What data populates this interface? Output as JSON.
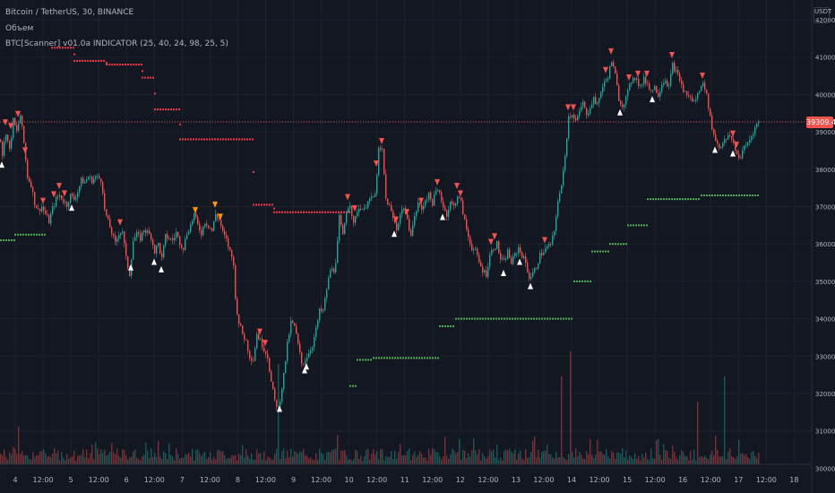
{
  "legend": {
    "symbol": "Bitcoin / TetherUS, 30, BINANCE",
    "volume": "Объем",
    "indicator": "BTC[Scanner] v01.0a INDICATOR (25, 40, 24, 98, 25, 5)"
  },
  "price_axis": {
    "unit": "USDT",
    "current_price": "39309.43"
  },
  "colors": {
    "background": "#131722",
    "grid": "#1e222d",
    "up": "#26a69a",
    "down": "#ef5350",
    "stop_red": "#f23645",
    "stop_green": "#4caf50",
    "sell_arrow": "#f05350",
    "buy_arrow": "#ffffff",
    "orange_arrow": "#ff9800",
    "axis_text": "#b2b5be"
  },
  "chart_data": {
    "type": "candlestick",
    "ylim": [
      30000,
      42000
    ],
    "y_ticks": [
      "42000.00",
      "41000.00",
      "40000.00",
      "39000.00",
      "38000.00",
      "37000.00",
      "36000.00",
      "35000.00",
      "34000.00",
      "33000.00",
      "32000.00",
      "31000.00",
      "30000.00"
    ],
    "x_labels": [
      "4",
      "12:00",
      "5",
      "12:00",
      "6",
      "12:00",
      "7",
      "12:00",
      "8",
      "12:00",
      "9",
      "12:00",
      "10",
      "12:00",
      "11",
      "12:00",
      "12",
      "12:00",
      "13",
      "12:00",
      "14",
      "12:00",
      "15",
      "12:00",
      "16",
      "12:00",
      "17",
      "12:00",
      "18"
    ],
    "price_path": [
      [
        0,
        38800
      ],
      [
        2,
        38400
      ],
      [
        6,
        39000
      ],
      [
        10,
        38500
      ],
      [
        14,
        39300
      ],
      [
        18,
        39000
      ],
      [
        22,
        39450
      ],
      [
        26,
        38700
      ],
      [
        30,
        37800
      ],
      [
        34,
        37600
      ],
      [
        38,
        37100
      ],
      [
        42,
        36900
      ],
      [
        46,
        37000
      ],
      [
        50,
        36800
      ],
      [
        54,
        36600
      ],
      [
        58,
        36950
      ],
      [
        62,
        37200
      ],
      [
        66,
        37300
      ],
      [
        70,
        37150
      ],
      [
        74,
        37050
      ],
      [
        78,
        37300
      ],
      [
        82,
        37200
      ],
      [
        86,
        37400
      ],
      [
        90,
        37700
      ],
      [
        94,
        37650
      ],
      [
        98,
        37800
      ],
      [
        102,
        37700
      ],
      [
        106,
        37800
      ],
      [
        110,
        37750
      ],
      [
        113,
        37700
      ],
      [
        116,
        36900
      ],
      [
        120,
        36600
      ],
      [
        124,
        36300
      ],
      [
        128,
        36000
      ],
      [
        132,
        36300
      ],
      [
        136,
        36350
      ],
      [
        140,
        35600
      ],
      [
        144,
        35200
      ],
      [
        148,
        36100
      ],
      [
        152,
        36250
      ],
      [
        156,
        36150
      ],
      [
        160,
        36400
      ],
      [
        164,
        36300
      ],
      [
        168,
        36200
      ],
      [
        172,
        35800
      ],
      [
        176,
        36000
      ],
      [
        180,
        35600
      ],
      [
        184,
        36200
      ],
      [
        188,
        36150
      ],
      [
        192,
        36100
      ],
      [
        196,
        36300
      ],
      [
        200,
        36050
      ],
      [
        204,
        35900
      ],
      [
        208,
        36300
      ],
      [
        212,
        36500
      ],
      [
        216,
        36800
      ],
      [
        220,
        36500
      ],
      [
        224,
        36300
      ],
      [
        228,
        36600
      ],
      [
        232,
        36500
      ],
      [
        236,
        36350
      ],
      [
        240,
        36800
      ],
      [
        244,
        36650
      ],
      [
        248,
        36300
      ],
      [
        252,
        36100
      ],
      [
        256,
        35800
      ],
      [
        260,
        35500
      ],
      [
        262,
        34500
      ],
      [
        266,
        33900
      ],
      [
        270,
        33600
      ],
      [
        274,
        33400
      ],
      [
        278,
        33000
      ],
      [
        282,
        32900
      ],
      [
        286,
        33600
      ],
      [
        290,
        33400
      ],
      [
        294,
        33200
      ],
      [
        298,
        33000
      ],
      [
        302,
        32300
      ],
      [
        306,
        31800
      ],
      [
        310,
        31600
      ],
      [
        313,
        32000
      ],
      [
        316,
        32500
      ],
      [
        320,
        33300
      ],
      [
        324,
        33900
      ],
      [
        328,
        33800
      ],
      [
        332,
        33300
      ],
      [
        336,
        32800
      ],
      [
        340,
        32900
      ],
      [
        344,
        33100
      ],
      [
        348,
        33300
      ],
      [
        352,
        33700
      ],
      [
        356,
        34200
      ],
      [
        360,
        34200
      ],
      [
        364,
        34800
      ],
      [
        368,
        35300
      ],
      [
        372,
        35300
      ],
      [
        375,
        35700
      ],
      [
        378,
        36700
      ],
      [
        382,
        36200
      ],
      [
        386,
        36900
      ],
      [
        390,
        37100
      ],
      [
        394,
        36500
      ],
      [
        398,
        36900
      ],
      [
        402,
        37000
      ],
      [
        406,
        36900
      ],
      [
        410,
        37200
      ],
      [
        414,
        37200
      ],
      [
        418,
        37300
      ],
      [
        422,
        38500
      ],
      [
        426,
        38500
      ],
      [
        430,
        37200
      ],
      [
        434,
        37000
      ],
      [
        438,
        36700
      ],
      [
        442,
        36400
      ],
      [
        446,
        36800
      ],
      [
        450,
        37000
      ],
      [
        454,
        36600
      ],
      [
        458,
        36300
      ],
      [
        462,
        36700
      ],
      [
        466,
        37100
      ],
      [
        470,
        36900
      ],
      [
        474,
        37200
      ],
      [
        478,
        37300
      ],
      [
        482,
        37100
      ],
      [
        486,
        37400
      ],
      [
        490,
        37400
      ],
      [
        494,
        37000
      ],
      [
        498,
        36800
      ],
      [
        502,
        37100
      ],
      [
        506,
        37000
      ],
      [
        510,
        37300
      ],
      [
        514,
        37100
      ],
      [
        518,
        36600
      ],
      [
        522,
        36200
      ],
      [
        526,
        35900
      ],
      [
        530,
        35800
      ],
      [
        534,
        35500
      ],
      [
        538,
        35300
      ],
      [
        542,
        35200
      ],
      [
        546,
        35700
      ],
      [
        550,
        35900
      ],
      [
        554,
        36000
      ],
      [
        558,
        35600
      ],
      [
        562,
        35500
      ],
      [
        566,
        35800
      ],
      [
        570,
        35500
      ],
      [
        574,
        35700
      ],
      [
        578,
        35900
      ],
      [
        582,
        35700
      ],
      [
        586,
        35500
      ],
      [
        590,
        35100
      ],
      [
        594,
        35200
      ],
      [
        598,
        35400
      ],
      [
        602,
        35700
      ],
      [
        606,
        35800
      ],
      [
        610,
        35900
      ],
      [
        614,
        36000
      ],
      [
        618,
        36300
      ],
      [
        622,
        37200
      ],
      [
        626,
        37500
      ],
      [
        630,
        38400
      ],
      [
        634,
        39400
      ],
      [
        638,
        39500
      ],
      [
        642,
        39300
      ],
      [
        646,
        39500
      ],
      [
        650,
        39800
      ],
      [
        654,
        39400
      ],
      [
        658,
        39700
      ],
      [
        662,
        39900
      ],
      [
        666,
        39700
      ],
      [
        670,
        40100
      ],
      [
        674,
        40300
      ],
      [
        678,
        40500
      ],
      [
        682,
        40900
      ],
      [
        686,
        40500
      ],
      [
        690,
        39900
      ],
      [
        694,
        39700
      ],
      [
        698,
        39900
      ],
      [
        702,
        40200
      ],
      [
        706,
        40500
      ],
      [
        710,
        40400
      ],
      [
        714,
        40200
      ],
      [
        718,
        40400
      ],
      [
        722,
        40300
      ],
      [
        726,
        40100
      ],
      [
        730,
        40200
      ],
      [
        734,
        40000
      ],
      [
        738,
        40300
      ],
      [
        742,
        40400
      ],
      [
        746,
        40200
      ],
      [
        750,
        40800
      ],
      [
        754,
        40600
      ],
      [
        758,
        40400
      ],
      [
        762,
        40100
      ],
      [
        766,
        40000
      ],
      [
        770,
        39900
      ],
      [
        774,
        39800
      ],
      [
        778,
        40000
      ],
      [
        782,
        40300
      ],
      [
        786,
        40200
      ],
      [
        790,
        39700
      ],
      [
        794,
        39100
      ],
      [
        798,
        38800
      ],
      [
        802,
        38600
      ],
      [
        806,
        38700
      ],
      [
        810,
        38800
      ],
      [
        814,
        38900
      ],
      [
        818,
        38700
      ],
      [
        822,
        38400
      ],
      [
        826,
        38300
      ],
      [
        830,
        38600
      ],
      [
        834,
        38700
      ],
      [
        838,
        38900
      ],
      [
        842,
        39100
      ],
      [
        846,
        39300
      ]
    ],
    "stop_red": [
      [
        57,
        82,
        41250
      ],
      [
        82,
        118,
        40900
      ],
      [
        118,
        158,
        40800
      ],
      [
        158,
        172,
        40450
      ],
      [
        172,
        200,
        39600
      ],
      [
        200,
        282,
        38800
      ],
      [
        282,
        305,
        37050
      ],
      [
        305,
        390,
        36850
      ]
    ],
    "stop_green": [
      [
        0,
        16,
        36100
      ],
      [
        16,
        50,
        36250
      ],
      [
        390,
        398,
        32200
      ],
      [
        398,
        416,
        32900
      ],
      [
        416,
        490,
        32950
      ],
      [
        490,
        508,
        33800
      ],
      [
        508,
        640,
        34000
      ],
      [
        640,
        660,
        35000
      ],
      [
        660,
        680,
        35800
      ],
      [
        680,
        700,
        36000
      ],
      [
        700,
        722,
        36500
      ],
      [
        722,
        782,
        37200
      ],
      [
        782,
        848,
        37300
      ]
    ],
    "sell_signals": [
      6,
      12,
      20,
      28,
      48,
      60,
      66,
      72,
      134,
      290,
      296,
      388,
      396,
      420,
      426,
      442,
      454,
      470,
      488,
      510,
      514,
      548,
      552,
      608,
      634,
      640,
      676,
      682,
      702,
      712,
      722,
      750,
      784,
      818,
      822
    ],
    "orange_signals": [
      218,
      240,
      246
    ],
    "buy_signals": [
      2,
      80,
      146,
      172,
      180,
      312,
      340,
      342,
      440,
      494,
      562,
      580,
      592,
      692,
      728,
      798,
      818
    ],
    "volume": {
      "ylim": [
        0,
        10000
      ],
      "note_high_bars": [
        [
          20,
          3
        ],
        [
          310,
          8
        ],
        [
          626,
          7
        ],
        [
          636,
          9
        ],
        [
          778,
          5
        ],
        [
          808,
          7
        ]
      ]
    }
  }
}
